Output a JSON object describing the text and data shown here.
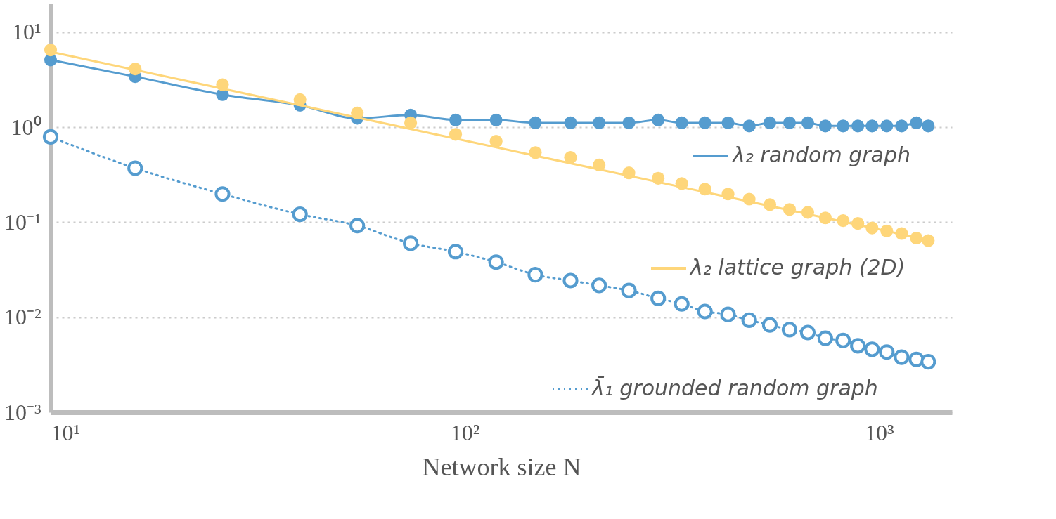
{
  "chart_data": {
    "type": "line",
    "xlabel": "Network size N",
    "log": "xy",
    "grid": "y",
    "legend": "right",
    "marker": "circle",
    "x": [
      10,
      16,
      26,
      40,
      55,
      74,
      95,
      119,
      148,
      180,
      211,
      249,
      293,
      334,
      380,
      432,
      486,
      545,
      608,
      673,
      742,
      819,
      889,
      962,
      1044,
      1134,
      1231,
      1315
    ],
    "xlim": [
      10,
      1500
    ],
    "ylim": [
      0.001,
      20
    ],
    "xticks": [
      {
        "value": 10,
        "label": "10¹"
      },
      {
        "value": 100,
        "label": "10²"
      },
      {
        "value": 1000,
        "label": "10³"
      }
    ],
    "yticks": [
      {
        "value": 0.001,
        "label": "10⁻³"
      },
      {
        "value": 0.01,
        "label": "10⁻²"
      },
      {
        "value": 0.1,
        "label": "10⁻¹"
      },
      {
        "value": 1,
        "label": "10⁰"
      },
      {
        "value": 10,
        "label": "10¹"
      }
    ],
    "series": [
      {
        "name": "λ₂ random graph",
        "color": "#559ccf",
        "line_style": "solid",
        "values": [
          5.1,
          3.4,
          2.2,
          1.7,
          1.24,
          1.34,
          1.19,
          1.19,
          1.11,
          1.11,
          1.11,
          1.11,
          1.19,
          1.11,
          1.11,
          1.11,
          1.03,
          1.11,
          1.11,
          1.11,
          1.03,
          1.03,
          1.03,
          1.03,
          1.03,
          1.03,
          1.11,
          1.03
        ]
      },
      {
        "color": "#fed67a",
        "type": "scatter",
        "values": [
          6.5,
          4.1,
          2.8,
          1.95,
          1.41,
          1.11,
          0.84,
          0.71,
          0.54,
          0.48,
          0.4,
          0.33,
          0.29,
          0.255,
          0.223,
          0.198,
          0.175,
          0.153,
          0.136,
          0.127,
          0.111,
          0.104,
          0.097,
          0.087,
          0.081,
          0.076,
          0.068,
          0.064
        ]
      },
      {
        "name": "λ₂ lattice graph (2D)",
        "color": "#fed67a",
        "marker": "none",
        "line_style": "solid",
        "x": [
          10,
          1315
        ],
        "values": [
          6.2,
          0.065
        ]
      },
      {
        "name": "λ̄₁ grounded random graph",
        "color": "#559ccf",
        "line_style": "dotted",
        "values": [
          0.79,
          0.37,
          0.198,
          0.121,
          0.092,
          0.06,
          0.049,
          0.038,
          0.028,
          0.0243,
          0.0216,
          0.0191,
          0.0158,
          0.0138,
          0.0115,
          0.0107,
          0.0093,
          0.0083,
          0.0074,
          0.0069,
          0.006,
          0.0057,
          0.005,
          0.0046,
          0.0043,
          0.0038,
          0.0036,
          0.0034
        ]
      }
    ]
  }
}
